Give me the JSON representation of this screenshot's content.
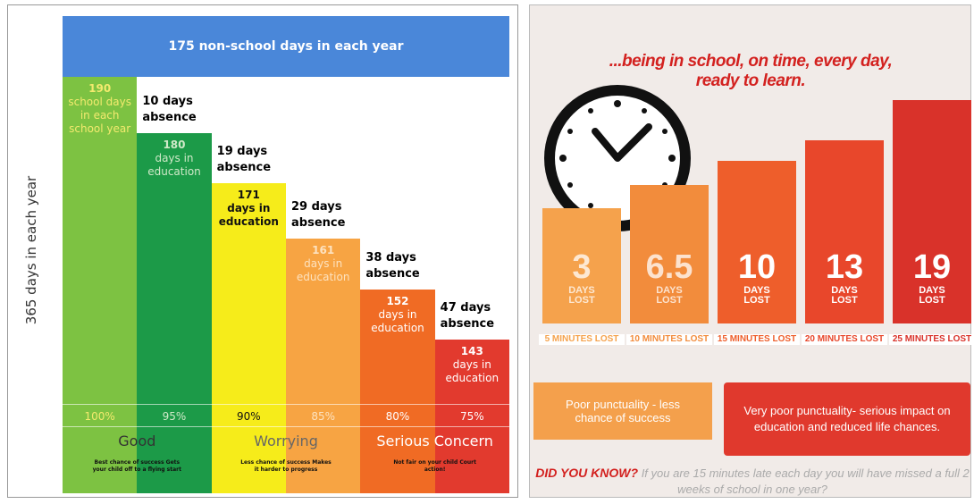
{
  "chart_data": [
    {
      "type": "bar",
      "title": "175 non-school days in each year",
      "y_label": "365 days in each year",
      "values": [
        190,
        180,
        171,
        161,
        152,
        143
      ],
      "bar_texts": [
        "school days in each school year",
        "days in education",
        "days in education",
        "days in education",
        "days in education",
        "days in education"
      ],
      "absence_labels": [
        "10 days absence",
        "19 days absence",
        "29 days absence",
        "38 days absence",
        "47 days absence"
      ],
      "percent_labels": [
        "100%",
        "95%",
        "90%",
        "85%",
        "80%",
        "75%"
      ],
      "colors": [
        "#7dc242",
        "#1c9a48",
        "#f6ec1a",
        "#f7a443",
        "#f06b24",
        "#e23a2e"
      ],
      "text_colors": [
        "#f3ea6e",
        "#cfe9c8",
        "#111111",
        "#fde2bf",
        "#ffffff",
        "#ffffff"
      ],
      "bands": [
        {
          "label": "Good",
          "note": "Best chance of success Gets your child off to a flying start"
        },
        {
          "label": "Worrying",
          "note": "Less chance of success Makes it harder to progress"
        },
        {
          "label": "Serious Concern",
          "note": "Not fair on your child Court action!"
        }
      ]
    },
    {
      "type": "bar",
      "title": "...being in school, on time, every day, ready to learn.",
      "categories": [
        "5 MINUTES LOST",
        "10 MINUTES LOST",
        "15 MINUTES LOST",
        "20 MINUTES LOST",
        "25 MINUTES LOST"
      ],
      "values": [
        3,
        6.5,
        10,
        13,
        19
      ],
      "unit_label": "DAYS LOST",
      "colors": [
        "#f5a24c",
        "#f28c3c",
        "#ee5e2b",
        "#e8472b",
        "#d9322a"
      ],
      "callouts": [
        "Poor punctuality - less chance of success",
        "Very poor punctuality- serious impact on education and reduced life chances."
      ],
      "note_lead": "DID YOU KNOW?",
      "note": "If you are 15 minutes late each day you will have missed a full 2 weeks of school in one year?"
    }
  ]
}
